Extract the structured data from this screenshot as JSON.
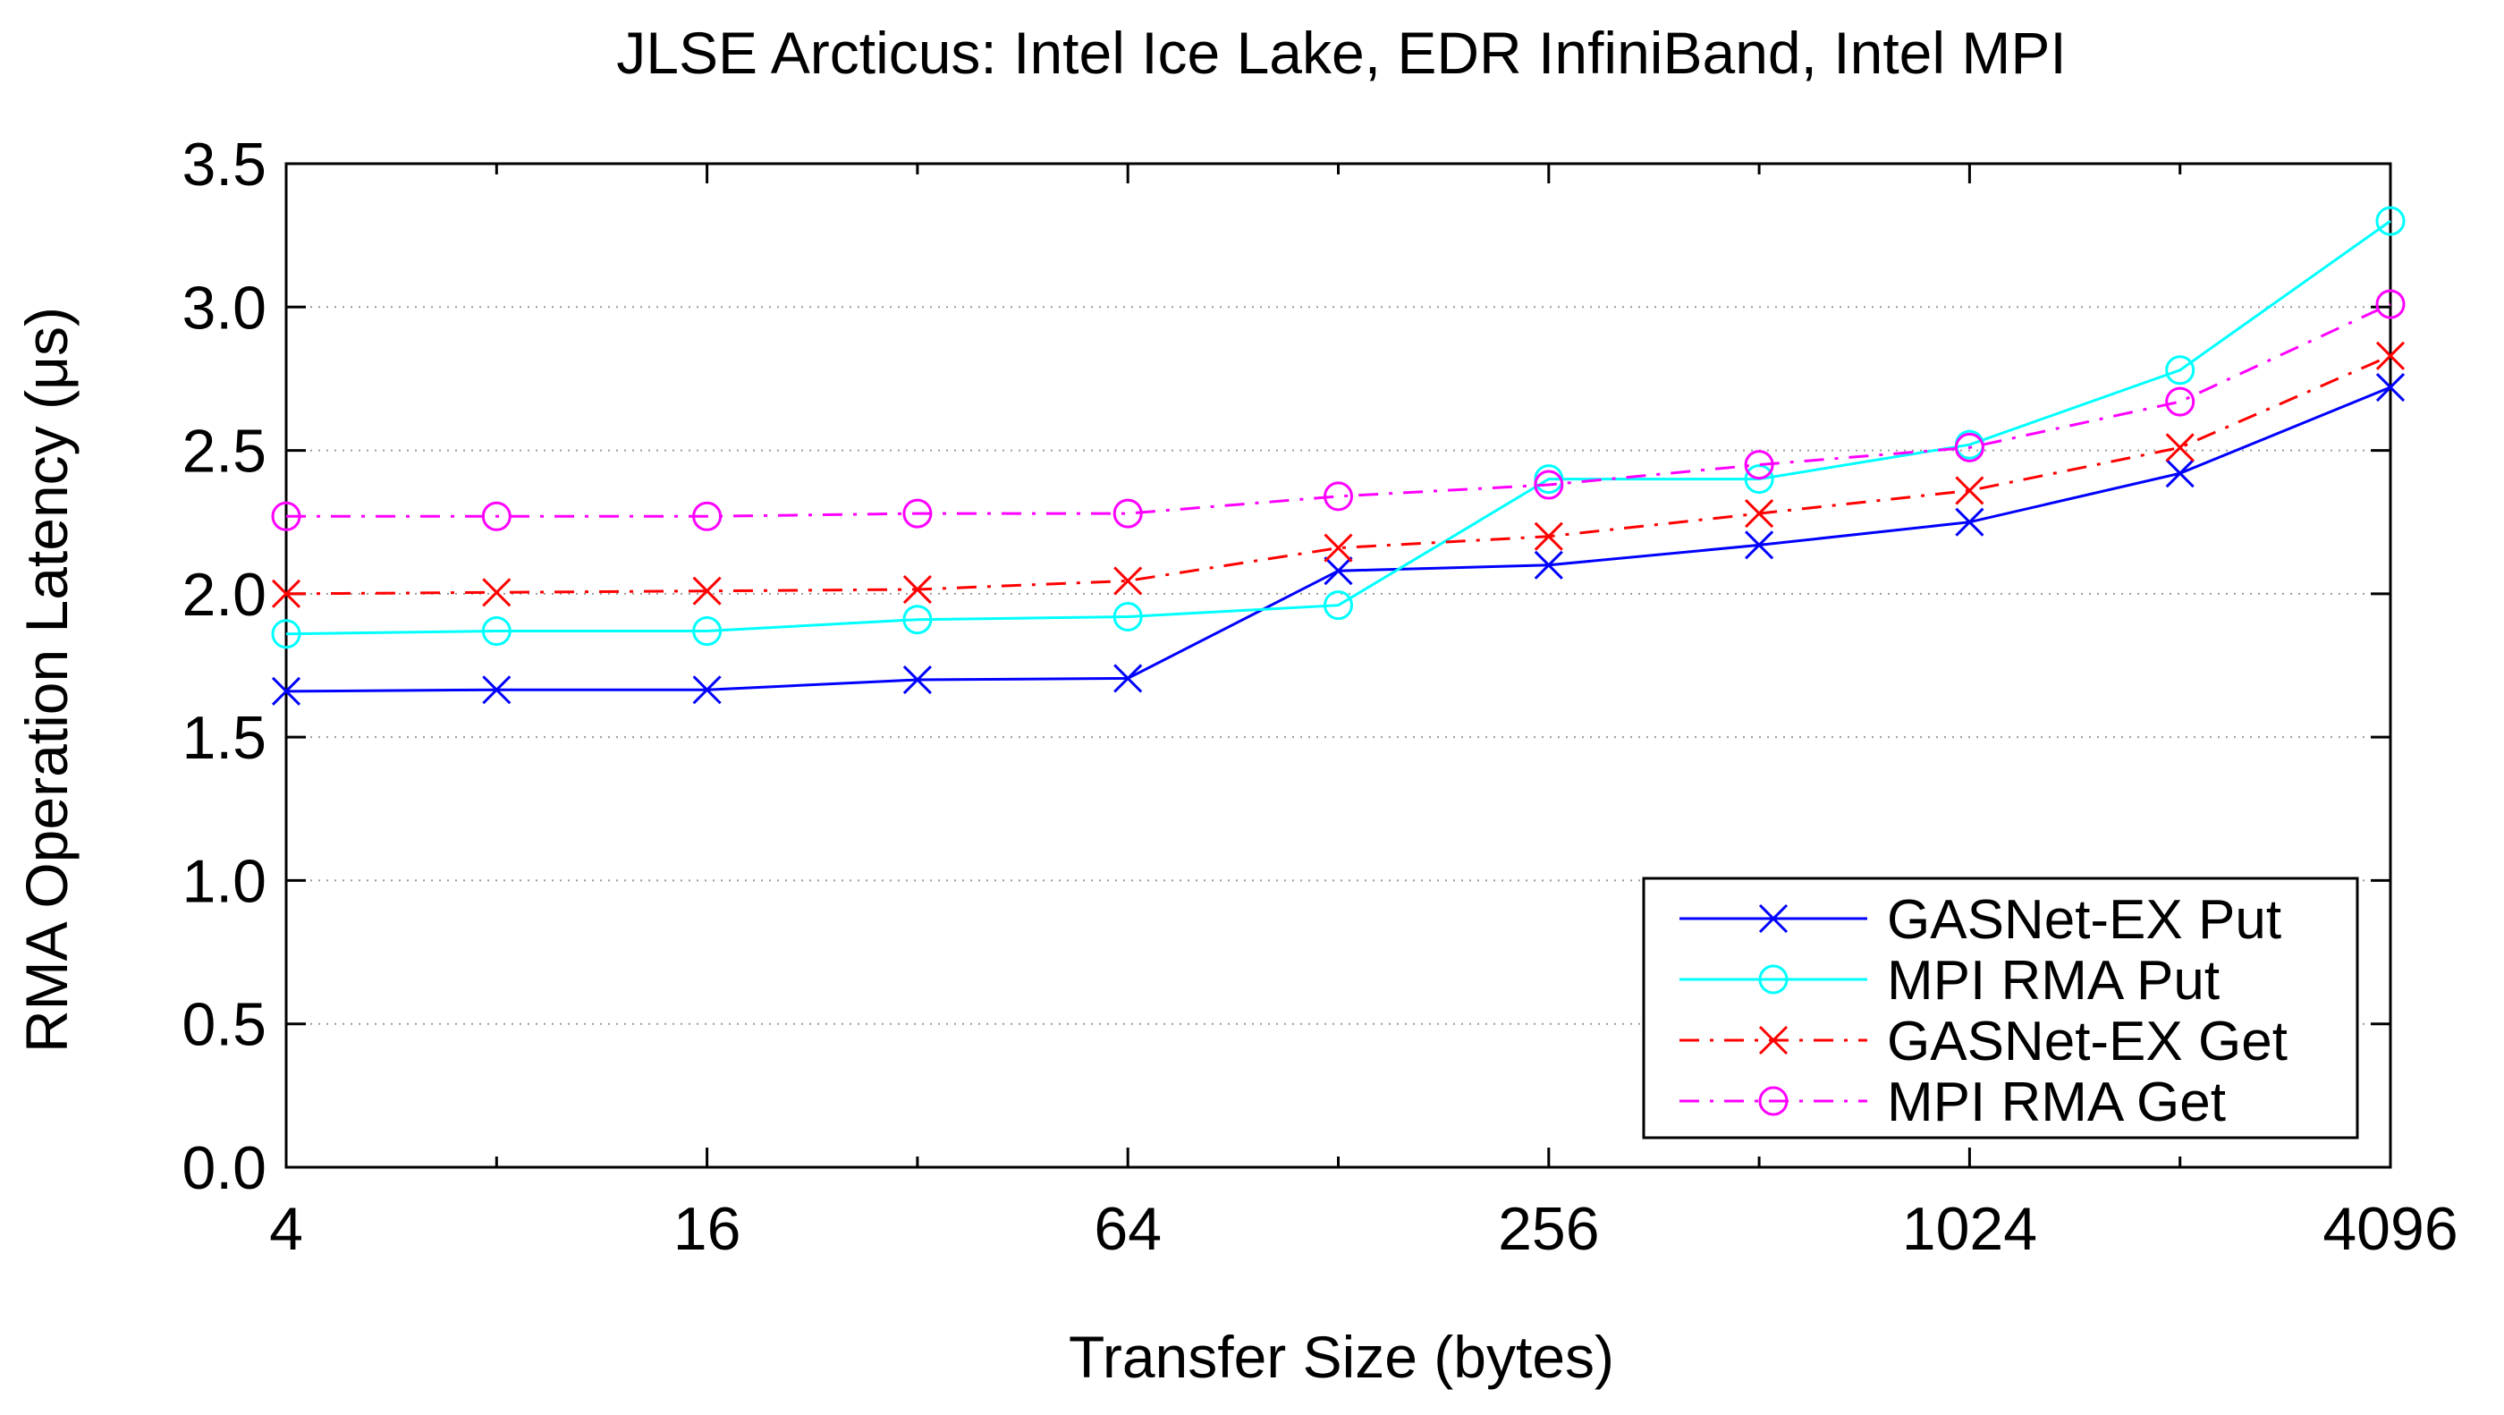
{
  "chart_data": {
    "type": "line",
    "title": "JLSE Arcticus: Intel Ice Lake, EDR InfiniBand, Intel MPI",
    "xlabel": "Transfer Size (bytes)",
    "ylabel": "RMA Operation Latency (μs)",
    "x_scale": "log2",
    "x": [
      4,
      8,
      16,
      32,
      64,
      128,
      256,
      512,
      1024,
      2048,
      4096
    ],
    "x_ticks": [
      "4",
      "16",
      "64",
      "256",
      "1024",
      "4096"
    ],
    "x_tick_values": [
      4,
      16,
      64,
      256,
      1024,
      4096
    ],
    "y_ticks": [
      "0.0",
      "0.5",
      "1.0",
      "1.5",
      "2.0",
      "2.5",
      "3.0",
      "3.5"
    ],
    "y_tick_values": [
      0,
      0.5,
      1.0,
      1.5,
      2.0,
      2.5,
      3.0,
      3.5
    ],
    "xlim": [
      4,
      4096
    ],
    "ylim": [
      0,
      3.5
    ],
    "grid": "horizontal dotted",
    "legend_position": "bottom-right",
    "series": [
      {
        "name": "GASNet-EX Put",
        "color": "#0000ff",
        "marker": "x",
        "dash": "solid",
        "values": [
          1.66,
          1.665,
          1.665,
          1.7,
          1.705,
          2.08,
          2.1,
          2.17,
          2.25,
          2.42,
          2.72
        ]
      },
      {
        "name": "MPI RMA Put",
        "color": "#00ffff",
        "marker": "circle",
        "dash": "solid",
        "values": [
          1.86,
          1.87,
          1.87,
          1.91,
          1.92,
          1.96,
          2.4,
          2.4,
          2.52,
          2.78,
          3.3
        ]
      },
      {
        "name": "GASNet-EX Get",
        "color": "#ff0000",
        "marker": "x",
        "dash": "dash-dot",
        "values": [
          2.0,
          2.005,
          2.01,
          2.015,
          2.045,
          2.16,
          2.2,
          2.28,
          2.36,
          2.51,
          2.83
        ]
      },
      {
        "name": "MPI RMA Get",
        "color": "#ff00ff",
        "marker": "circle",
        "dash": "dash-dot",
        "values": [
          2.27,
          2.27,
          2.27,
          2.28,
          2.28,
          2.34,
          2.38,
          2.45,
          2.51,
          2.67,
          3.01
        ]
      }
    ]
  }
}
